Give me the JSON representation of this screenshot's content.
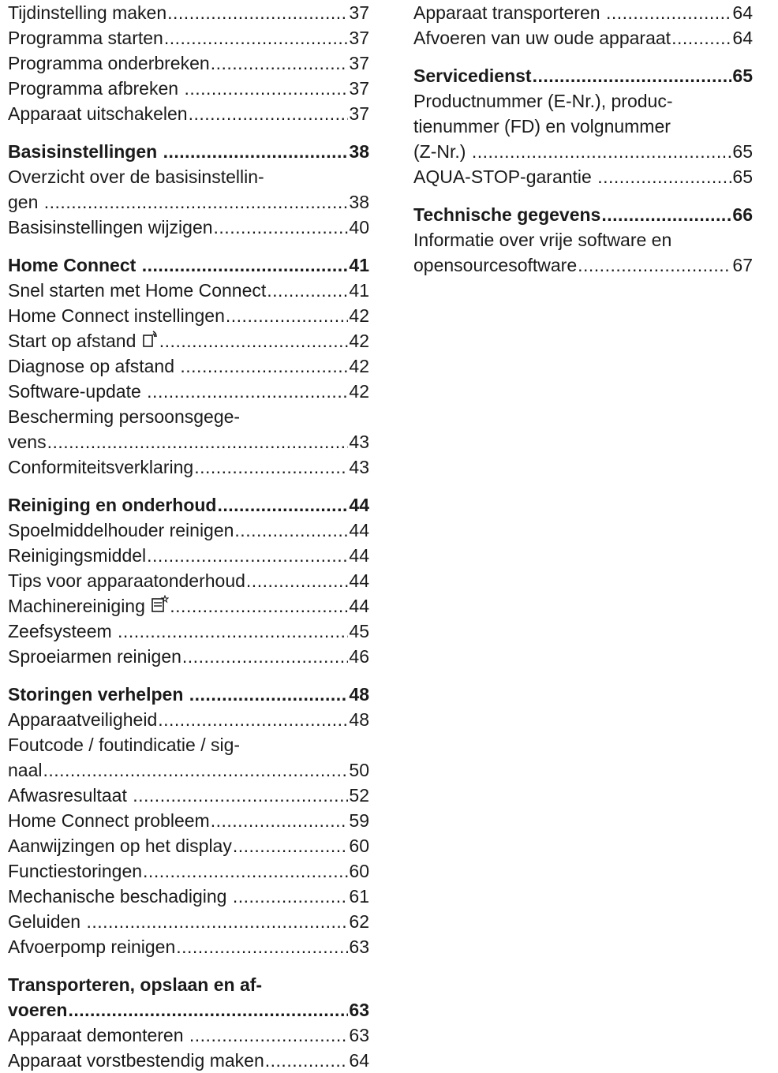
{
  "left_column": [
    {
      "type": "item",
      "lines": [
        "Tijdinstelling maken"
      ],
      "page": "37"
    },
    {
      "type": "item",
      "lines": [
        "Programma starten"
      ],
      "page": "37"
    },
    {
      "type": "item",
      "lines": [
        "Programma onderbreken"
      ],
      "page": "37"
    },
    {
      "type": "item",
      "lines": [
        "Programma afbreken "
      ],
      "page": "37"
    },
    {
      "type": "item",
      "lines": [
        "Apparaat uitschakelen"
      ],
      "page": "37"
    },
    {
      "type": "section",
      "lines": [
        "Basisinstellingen "
      ],
      "page": "38"
    },
    {
      "type": "item",
      "lines": [
        "Overzicht over de basisinstellin-",
        "gen "
      ],
      "page": "38"
    },
    {
      "type": "item",
      "lines": [
        "Basisinstellingen wijzigen"
      ],
      "page": "40"
    },
    {
      "type": "section",
      "lines": [
        "Home Connect "
      ],
      "page": "41"
    },
    {
      "type": "item",
      "lines": [
        "Snel starten met Home Connect"
      ],
      "page": "41"
    },
    {
      "type": "item",
      "lines": [
        "Home Connect instellingen"
      ],
      "page": "42"
    },
    {
      "type": "item",
      "lines": [
        "Start op afstand "
      ],
      "page": "42",
      "icon": "remote-start-icon"
    },
    {
      "type": "item",
      "lines": [
        "Diagnose op afstand "
      ],
      "page": "42"
    },
    {
      "type": "item",
      "lines": [
        "Software-update "
      ],
      "page": "42"
    },
    {
      "type": "item",
      "lines": [
        "Bescherming persoonsgege-",
        "vens"
      ],
      "page": "43"
    },
    {
      "type": "item",
      "lines": [
        "Conformiteitsverklaring"
      ],
      "page": "43"
    },
    {
      "type": "section",
      "lines": [
        "Reiniging en onderhoud"
      ],
      "page": "44"
    },
    {
      "type": "item",
      "lines": [
        "Spoelmiddelhouder reinigen"
      ],
      "page": "44"
    },
    {
      "type": "item",
      "lines": [
        "Reinigingsmiddel"
      ],
      "page": "44"
    },
    {
      "type": "item",
      "lines": [
        "Tips voor apparaatonderhoud"
      ],
      "page": "44"
    },
    {
      "type": "item",
      "lines": [
        "Machinereiniging "
      ],
      "page": "44",
      "icon": "machine-care-icon"
    },
    {
      "type": "item",
      "lines": [
        "Zeefsysteem "
      ],
      "page": "45"
    },
    {
      "type": "item",
      "lines": [
        "Sproeiarmen reinigen"
      ],
      "page": "46"
    },
    {
      "type": "section",
      "lines": [
        "Storingen verhelpen "
      ],
      "page": "48"
    },
    {
      "type": "item",
      "lines": [
        "Apparaatveiligheid"
      ],
      "page": "48"
    },
    {
      "type": "item",
      "lines": [
        "Foutcode / foutindicatie / sig-",
        "naal"
      ],
      "page": "50"
    },
    {
      "type": "item",
      "lines": [
        "Afwasresultaat "
      ],
      "page": "52"
    },
    {
      "type": "item",
      "lines": [
        "Home Connect probleem"
      ],
      "page": "59"
    },
    {
      "type": "item",
      "lines": [
        "Aanwijzingen op het display"
      ],
      "page": "60"
    },
    {
      "type": "item",
      "lines": [
        "Functiestoringen"
      ],
      "page": "60"
    },
    {
      "type": "item",
      "lines": [
        "Mechanische beschadiging "
      ],
      "page": "61"
    },
    {
      "type": "item",
      "lines": [
        "Geluiden "
      ],
      "page": "62"
    },
    {
      "type": "item",
      "lines": [
        "Afvoerpomp reinigen"
      ],
      "page": "63"
    },
    {
      "type": "section",
      "lines": [
        "Transporteren, opslaan en af-",
        "voeren"
      ],
      "page": "63"
    },
    {
      "type": "item",
      "lines": [
        "Apparaat demonteren "
      ],
      "page": "63"
    },
    {
      "type": "item",
      "lines": [
        "Apparaat vorstbestendig maken"
      ],
      "page": "64"
    }
  ],
  "right_column": [
    {
      "type": "item",
      "lines": [
        "Apparaat transporteren "
      ],
      "page": "64"
    },
    {
      "type": "item",
      "lines": [
        "Afvoeren van uw oude apparaat"
      ],
      "page": "64"
    },
    {
      "type": "section",
      "lines": [
        "Servicedienst"
      ],
      "page": "65"
    },
    {
      "type": "item",
      "lines": [
        "Productnummer (E-Nr.), produc-",
        "tienummer (FD) en volgnummer",
        "(Z-Nr.) "
      ],
      "page": "65"
    },
    {
      "type": "item",
      "lines": [
        "AQUA-STOP-garantie "
      ],
      "page": "65"
    },
    {
      "type": "section",
      "lines": [
        "Technische gegevens"
      ],
      "page": "66"
    },
    {
      "type": "item",
      "lines": [
        "Informatie over vrije software en",
        "opensourcesoftware"
      ],
      "page": "67"
    }
  ]
}
